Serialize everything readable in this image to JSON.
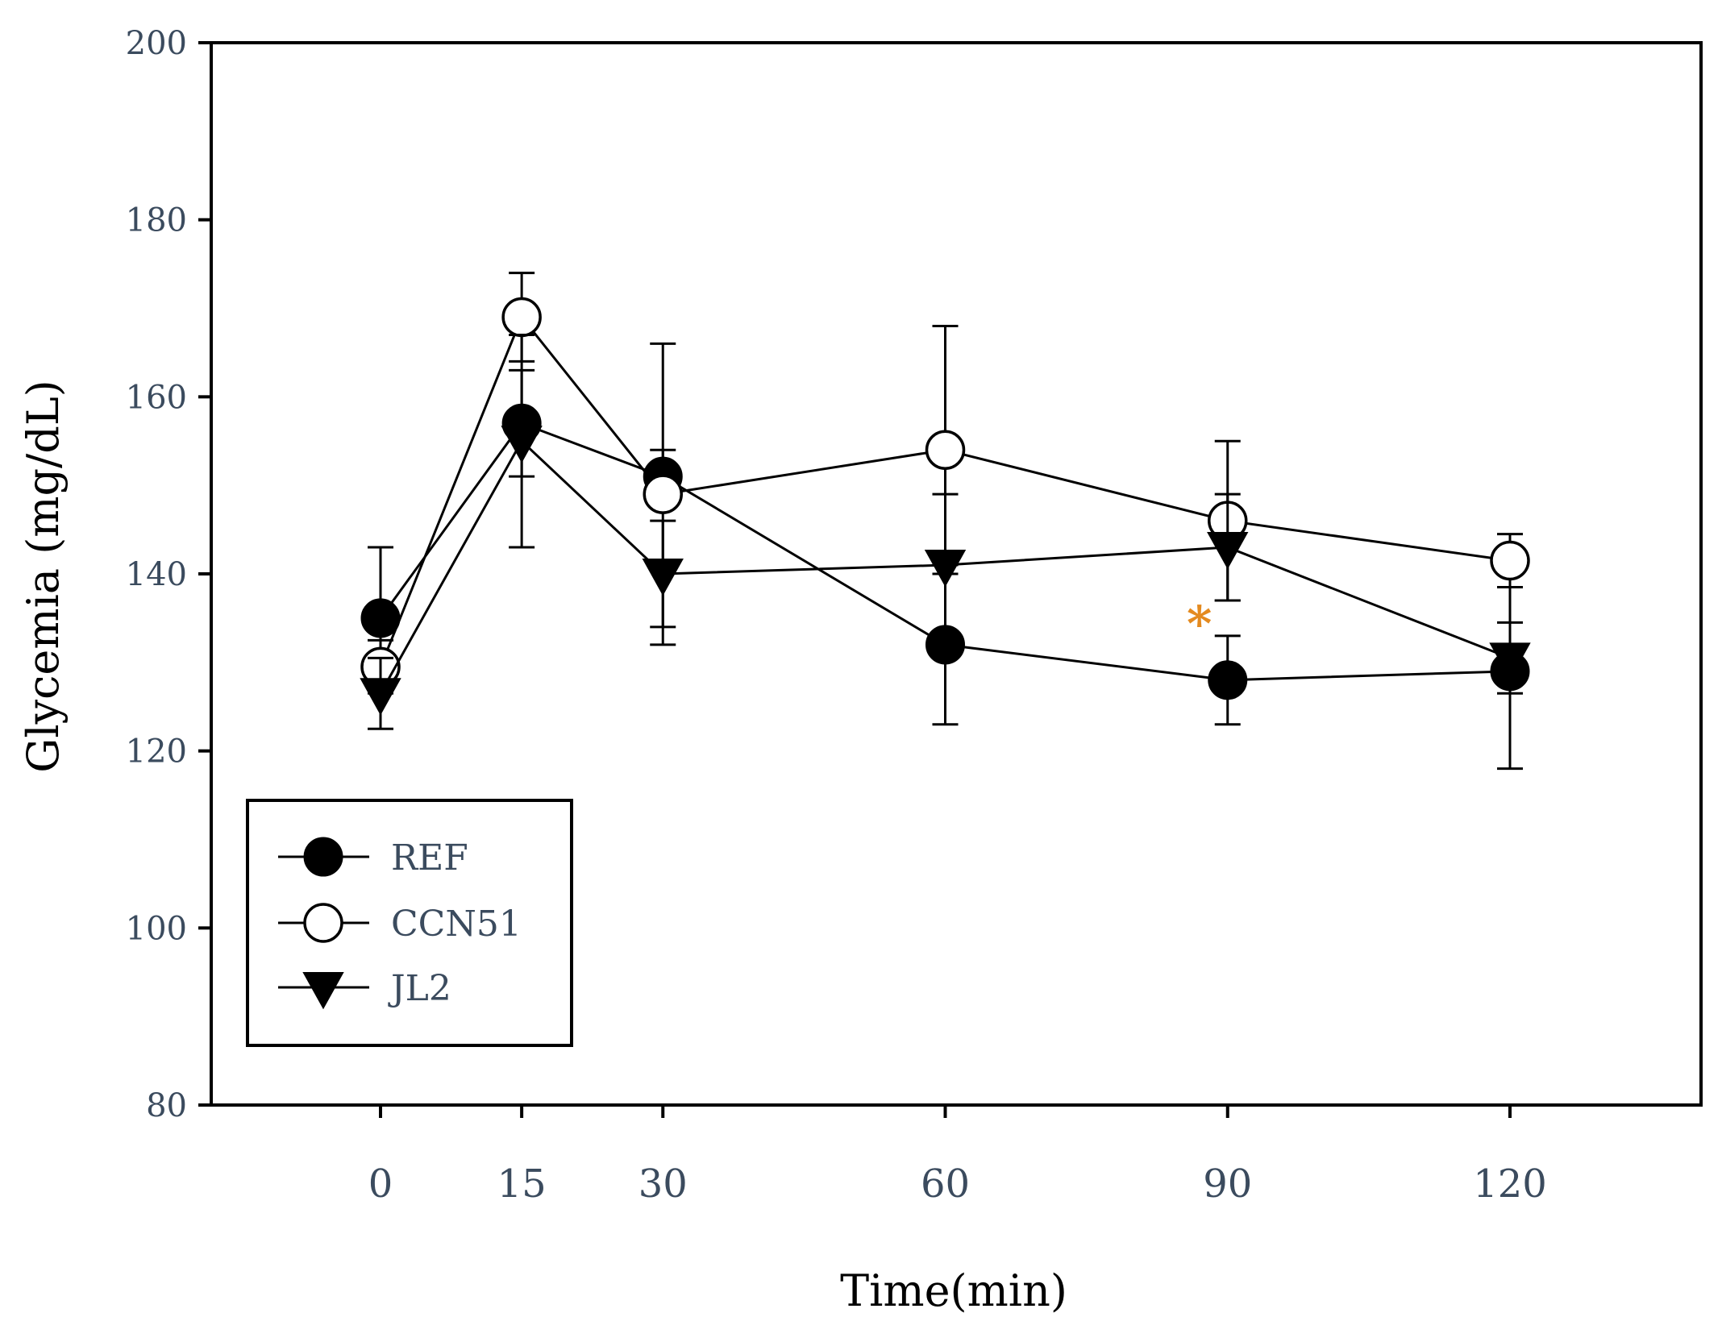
{
  "chart_data": {
    "type": "line",
    "title": "",
    "xlabel": "Time(min)",
    "ylabel": "Glycemia (mg/dL)",
    "x": [
      0,
      15,
      30,
      60,
      90,
      120
    ],
    "x_tick_labels": [
      "0",
      "15",
      "30",
      "60",
      "90",
      "120"
    ],
    "ylim": [
      80,
      200
    ],
    "y_ticks": [
      80,
      100,
      120,
      140,
      160,
      180,
      200
    ],
    "y_tick_labels": [
      "80",
      "100",
      "120",
      "140",
      "160",
      "180",
      "200"
    ],
    "grid": false,
    "legend_position": "bottom-left",
    "series": [
      {
        "name": "REF",
        "marker": "filled-circle",
        "values": [
          135,
          157,
          151,
          132,
          128,
          129
        ],
        "errors": [
          8,
          6,
          3,
          9,
          5,
          11
        ]
      },
      {
        "name": "CCN51",
        "marker": "open-circle",
        "values": [
          129.5,
          169,
          149,
          154,
          146,
          141.5
        ],
        "errors": [
          3,
          5,
          17,
          14,
          9,
          3
        ]
      },
      {
        "name": "JL2",
        "marker": "filled-triangle-down",
        "values": [
          126.5,
          155,
          140,
          141,
          143,
          130.5
        ],
        "errors": [
          4,
          12,
          6,
          8,
          6,
          4
        ]
      }
    ],
    "annotations": [
      {
        "text": "*",
        "x": 87,
        "y": 134.5,
        "color": "#e48a1f"
      }
    ],
    "colors": {
      "axis": "#000000",
      "label": "#3b4b5e",
      "annotation": "#e48a1f"
    }
  }
}
